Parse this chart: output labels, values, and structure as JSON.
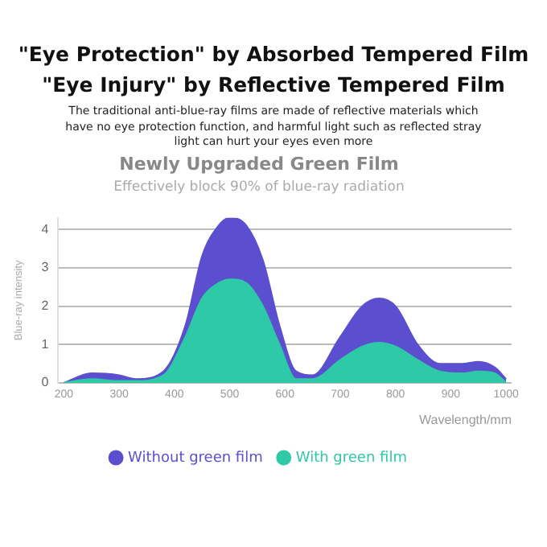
{
  "chart_data": {
    "type": "area",
    "title": "Newly Upgraded Green Film",
    "subtitle": "Effectively block 90% of blue-ray radiation",
    "xlabel": "Wavelength/mm",
    "ylabel": "Blue-ray intensity",
    "annotations": [
      "\"Eye Protection\" by Absorbed Tempered Film",
      "\"Eye Injury\" by Reflective Tempered Film",
      "The traditional anti-blue-ray films are made of reflective materials which have no eye protection function, and harmful light such as reflected stray light can hurt your eyes even more"
    ],
    "x": [
      200,
      250,
      300,
      330,
      380,
      420,
      450,
      480,
      500,
      530,
      560,
      590,
      620,
      650,
      700,
      740,
      770,
      800,
      840,
      880,
      920,
      950,
      980,
      1000
    ],
    "series": [
      {
        "name": "Without green film",
        "color": "#5b4fcf",
        "values": [
          0,
          0.25,
          0.2,
          0.1,
          0.3,
          1.5,
          3.3,
          4.1,
          4.3,
          4.1,
          3.2,
          1.5,
          0.3,
          0.2,
          1.2,
          2.0,
          2.2,
          2.0,
          1.0,
          0.5,
          0.5,
          0.55,
          0.4,
          0.1
        ]
      },
      {
        "name": "With green film",
        "color": "#2ec9a6",
        "values": [
          0,
          0.1,
          0.05,
          0.05,
          0.2,
          1.2,
          2.2,
          2.6,
          2.7,
          2.6,
          2.0,
          1.0,
          0.1,
          0.1,
          0.6,
          0.95,
          1.05,
          0.95,
          0.6,
          0.3,
          0.25,
          0.3,
          0.25,
          0
        ]
      }
    ],
    "xlim": [
      190,
      1010
    ],
    "xticks": [
      200,
      300,
      400,
      500,
      600,
      700,
      800,
      900,
      1000
    ],
    "ylim": [
      0,
      4.3
    ],
    "yticks": [
      0,
      1,
      2,
      3,
      4
    ],
    "grid": "y",
    "legend": "bottom"
  }
}
